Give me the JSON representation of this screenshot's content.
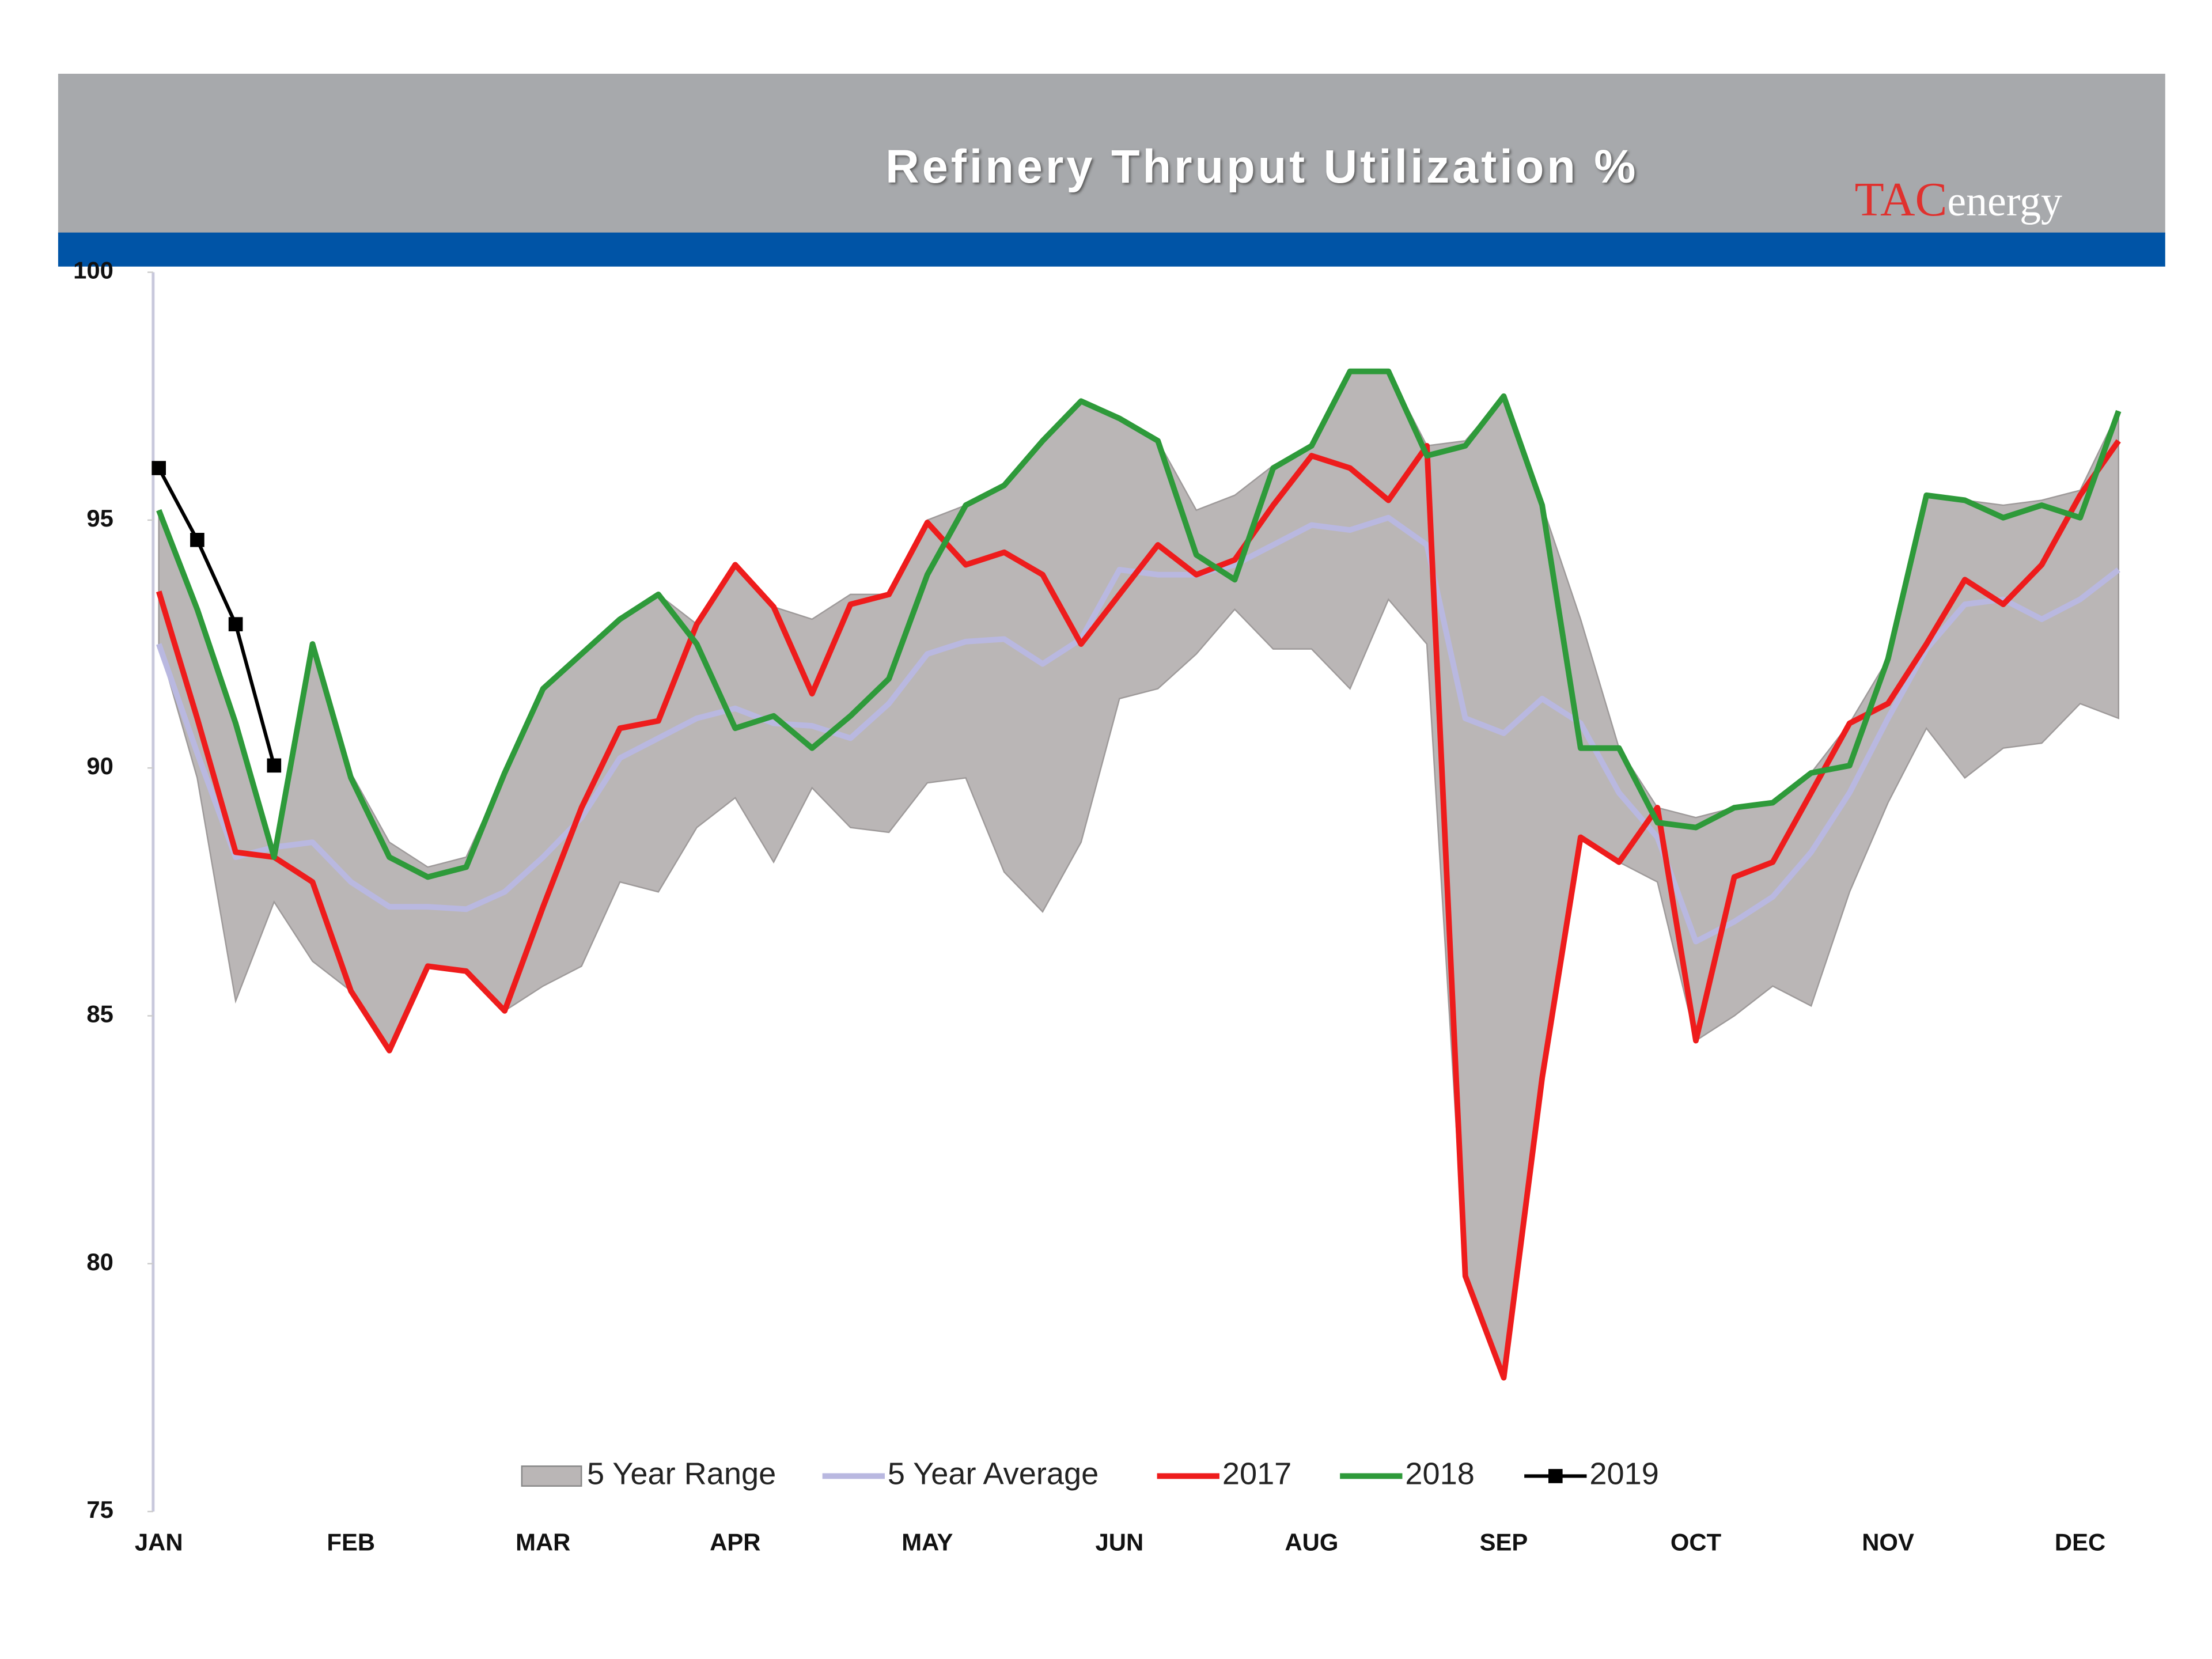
{
  "chart_data": {
    "type": "line",
    "title": "Refinery Thruput Utilization %",
    "logo": {
      "brand": "TAC",
      "suffix": "energy"
    },
    "categories": [
      "JAN",
      null,
      null,
      null,
      null,
      "FEB",
      null,
      null,
      null,
      null,
      "MAR",
      null,
      null,
      null,
      null,
      "APR",
      null,
      null,
      null,
      null,
      "MAY",
      null,
      null,
      null,
      null,
      "JUN",
      null,
      null,
      null,
      null,
      "AUG",
      null,
      null,
      null,
      null,
      "SEP",
      null,
      null,
      null,
      null,
      "OCT",
      null,
      null,
      null,
      null,
      "NOV",
      null,
      null,
      null,
      null,
      "DEC",
      null
    ],
    "ylim": [
      75,
      100
    ],
    "yticks": [
      75,
      80,
      85,
      90,
      95,
      100
    ],
    "grid": false,
    "legend": "bottom",
    "series": [
      {
        "name": "5 Year Range",
        "kind": "range",
        "color": "#bab6b6",
        "low": [
          92.5,
          89.8,
          85.3,
          87.3,
          86.1,
          85.5,
          84.3,
          86.0,
          85.9,
          85.1,
          85.6,
          86.0,
          87.7,
          87.5,
          88.8,
          89.4,
          88.1,
          89.6,
          88.8,
          88.7,
          89.7,
          89.8,
          87.9,
          87.1,
          88.5,
          91.4,
          91.6,
          92.3,
          93.2,
          92.4,
          92.4,
          91.6,
          93.4,
          92.5,
          79.75,
          77.7,
          83.75,
          88.6,
          88.1,
          87.7,
          84.5,
          85.0,
          85.6,
          85.2,
          87.5,
          89.3,
          90.8,
          89.8,
          90.4,
          90.5,
          91.3,
          91.0
        ],
        "high": [
          95.2,
          93.2,
          90.9,
          88.2,
          92.5,
          89.9,
          88.5,
          88.0,
          88.2,
          89.9,
          91.6,
          92.3,
          93.0,
          93.5,
          92.9,
          94.1,
          93.25,
          93.0,
          93.5,
          93.5,
          95.0,
          95.3,
          95.7,
          96.6,
          97.4,
          97.05,
          96.6,
          95.2,
          95.5,
          96.1,
          96.5,
          98.0,
          98.0,
          96.5,
          96.6,
          97.5,
          95.3,
          93.0,
          90.4,
          89.2,
          89.0,
          89.2,
          89.3,
          89.9,
          90.9,
          92.2,
          95.5,
          95.4,
          95.3,
          95.4,
          95.6,
          97.2
        ]
      },
      {
        "name": "5 Year Average",
        "color": "#b9b8e0",
        "values": [
          92.5,
          90.3,
          88.2,
          88.4,
          88.5,
          87.7,
          87.2,
          87.2,
          87.15,
          87.5,
          88.2,
          89.0,
          90.2,
          90.6,
          91.0,
          91.2,
          90.9,
          90.85,
          90.6,
          91.3,
          92.3,
          92.55,
          92.6,
          92.1,
          92.6,
          94.0,
          93.9,
          93.9,
          94.1,
          94.5,
          94.9,
          94.8,
          95.05,
          94.5,
          91.0,
          90.7,
          91.4,
          90.9,
          89.5,
          88.6,
          86.5,
          86.9,
          87.4,
          88.3,
          89.5,
          91.0,
          92.4,
          93.3,
          93.4,
          93.0,
          93.4,
          94.0
        ]
      },
      {
        "name": "2017",
        "color": "#ee1c1c",
        "values": [
          93.56,
          91.0,
          88.3,
          88.2,
          87.7,
          85.5,
          84.3,
          86.0,
          85.9,
          85.1,
          87.2,
          89.2,
          90.8,
          90.95,
          92.9,
          94.1,
          93.25,
          91.5,
          93.3,
          93.5,
          94.95,
          94.1,
          94.35,
          93.9,
          92.5,
          93.5,
          94.5,
          93.9,
          94.2,
          95.3,
          96.3,
          96.05,
          95.4,
          96.5,
          79.75,
          77.7,
          83.75,
          88.6,
          88.1,
          89.2,
          84.5,
          87.8,
          88.1,
          89.5,
          90.9,
          91.3,
          92.5,
          93.8,
          93.3,
          94.1,
          95.5,
          96.6
        ]
      },
      {
        "name": "2018",
        "color": "#2e9a3a",
        "values": [
          95.2,
          93.2,
          90.9,
          88.2,
          92.5,
          89.8,
          88.2,
          87.8,
          88.0,
          89.9,
          91.6,
          92.3,
          93.0,
          93.5,
          92.5,
          90.8,
          91.05,
          90.4,
          91.05,
          91.8,
          93.9,
          95.3,
          95.7,
          96.6,
          97.4,
          97.05,
          96.6,
          94.3,
          93.8,
          96.05,
          96.5,
          98.0,
          98.0,
          96.3,
          96.5,
          97.5,
          95.3,
          90.4,
          90.4,
          88.9,
          88.8,
          89.2,
          89.3,
          89.9,
          90.05,
          92.2,
          95.5,
          95.4,
          95.05,
          95.3,
          95.05,
          97.2
        ]
      },
      {
        "name": "2019",
        "color": "#000000",
        "marker": "square",
        "values": [
          96.05,
          94.6,
          92.9,
          90.05,
          null,
          null,
          null,
          null,
          null,
          null,
          null,
          null,
          null,
          null,
          null,
          null,
          null,
          null,
          null,
          null,
          null,
          null,
          null,
          null,
          null,
          null,
          null,
          null,
          null,
          null,
          null,
          null,
          null,
          null,
          null,
          null,
          null,
          null,
          null,
          null,
          null,
          null,
          null,
          null,
          null,
          null,
          null,
          null,
          null,
          null,
          null,
          null
        ]
      }
    ]
  }
}
